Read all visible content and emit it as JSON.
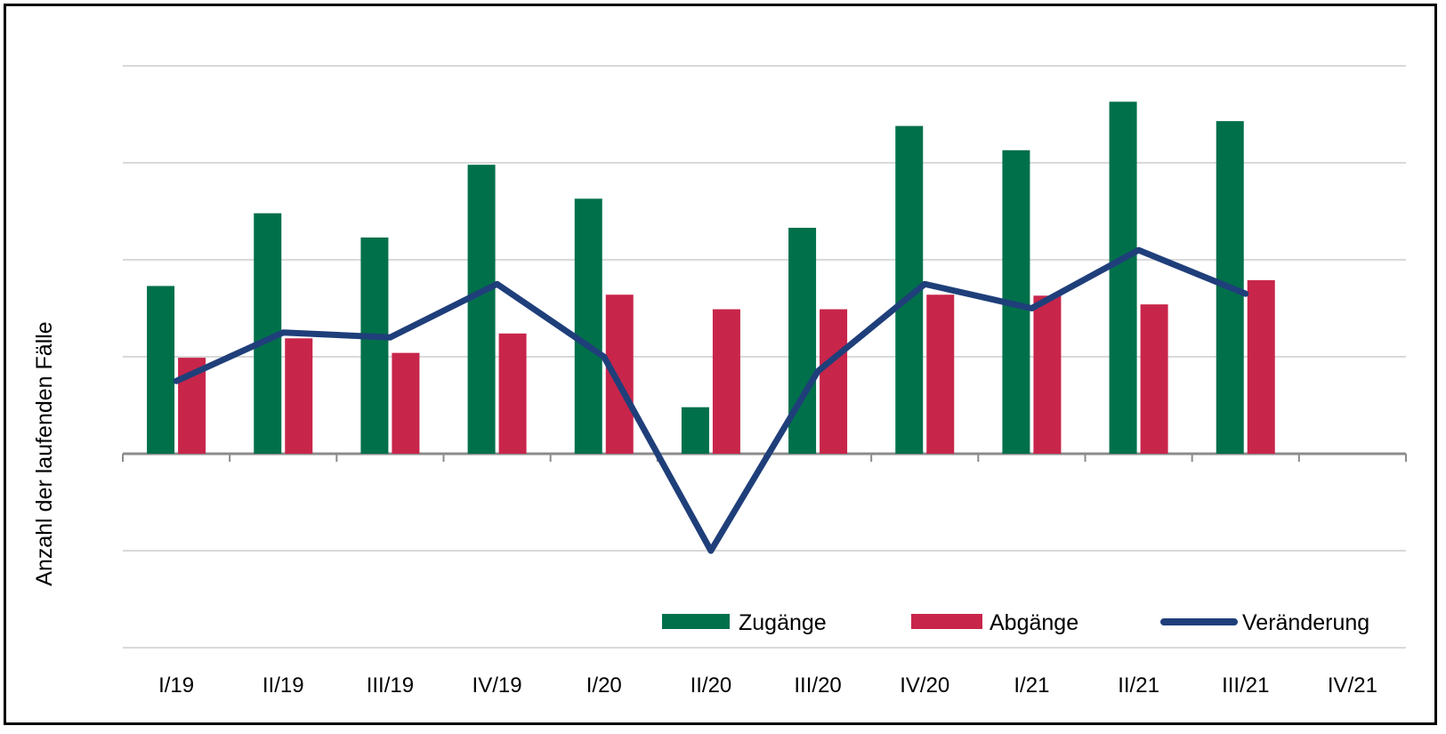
{
  "chart_data": {
    "type": "bar",
    "ylabel": "Anzahl der laufenden Fälle",
    "categories": [
      "I/19",
      "II/19",
      "III/19",
      "IV/19",
      "I/20",
      "II/20",
      "III/20",
      "IV/20",
      "I/21",
      "II/21",
      "III/21",
      "IV/21"
    ],
    "ylim": [
      -4,
      8
    ],
    "grid": true,
    "legend_position": "bottom-right",
    "series": [
      {
        "name": "Zugänge",
        "kind": "bar",
        "color": "#00704a",
        "values": [
          3.46,
          4.96,
          4.46,
          5.96,
          5.26,
          0.96,
          4.66,
          6.76,
          6.26,
          7.26,
          6.86,
          null
        ]
      },
      {
        "name": "Abgänge",
        "kind": "bar",
        "color": "#c8254a",
        "values": [
          1.98,
          2.38,
          2.08,
          2.48,
          3.28,
          2.98,
          2.98,
          3.28,
          3.26,
          3.08,
          3.58,
          null
        ]
      },
      {
        "name": "Veränderung",
        "kind": "line",
        "color": "#1f3f7a",
        "values": [
          1.5,
          2.5,
          2.4,
          3.5,
          2.0,
          -2.0,
          1.7,
          3.5,
          3.0,
          4.2,
          3.3,
          null
        ]
      }
    ]
  }
}
